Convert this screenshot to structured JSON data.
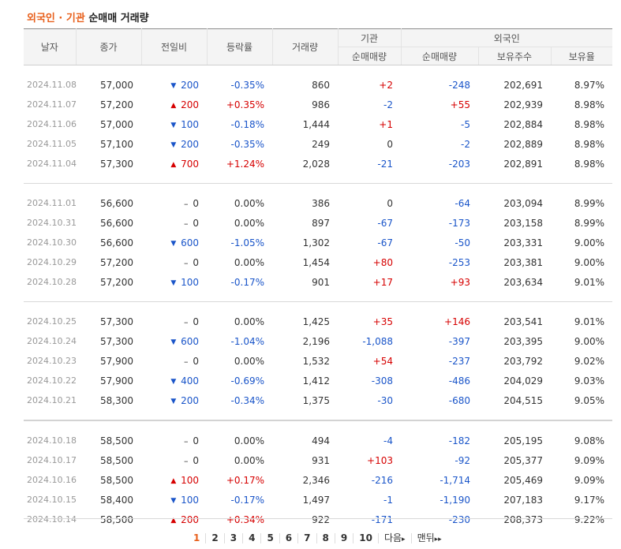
{
  "title": {
    "part1": "외국인 · 기관",
    "part2": "순매매 거래량"
  },
  "headers": {
    "date": "날자",
    "close": "종가",
    "change": "전일비",
    "rate": "등락률",
    "volume": "거래량",
    "inst": "기관",
    "foreign": "외국인",
    "inst_net": "순매매량",
    "foreign_net": "순매매량",
    "foreign_hold": "보유주수",
    "foreign_ratio": "보유율"
  },
  "groups": [
    {
      "rows": [
        {
          "date": "2024.11.08",
          "close": "57,000",
          "dir": "down",
          "change": "200",
          "rate": "-0.35%",
          "rate_dir": "down",
          "volume": "860",
          "inst": "+2",
          "inst_dir": "up",
          "foreign": "-248",
          "foreign_dir": "down",
          "hold": "202,691",
          "ratio": "8.97%"
        },
        {
          "date": "2024.11.07",
          "close": "57,200",
          "dir": "up",
          "change": "200",
          "rate": "+0.35%",
          "rate_dir": "up",
          "volume": "986",
          "inst": "-2",
          "inst_dir": "down",
          "foreign": "+55",
          "foreign_dir": "up",
          "hold": "202,939",
          "ratio": "8.98%"
        },
        {
          "date": "2024.11.06",
          "close": "57,000",
          "dir": "down",
          "change": "100",
          "rate": "-0.18%",
          "rate_dir": "down",
          "volume": "1,444",
          "inst": "+1",
          "inst_dir": "up",
          "foreign": "-5",
          "foreign_dir": "down",
          "hold": "202,884",
          "ratio": "8.98%"
        },
        {
          "date": "2024.11.05",
          "close": "57,100",
          "dir": "down",
          "change": "200",
          "rate": "-0.35%",
          "rate_dir": "down",
          "volume": "249",
          "inst": "0",
          "inst_dir": "flat",
          "foreign": "-2",
          "foreign_dir": "down",
          "hold": "202,889",
          "ratio": "8.98%"
        },
        {
          "date": "2024.11.04",
          "close": "57,300",
          "dir": "up",
          "change": "700",
          "rate": "+1.24%",
          "rate_dir": "up",
          "volume": "2,028",
          "inst": "-21",
          "inst_dir": "down",
          "foreign": "-203",
          "foreign_dir": "down",
          "hold": "202,891",
          "ratio": "8.98%"
        }
      ]
    },
    {
      "rows": [
        {
          "date": "2024.11.01",
          "close": "56,600",
          "dir": "flat",
          "change": "0",
          "rate": "0.00%",
          "rate_dir": "flat",
          "volume": "386",
          "inst": "0",
          "inst_dir": "flat",
          "foreign": "-64",
          "foreign_dir": "down",
          "hold": "203,094",
          "ratio": "8.99%"
        },
        {
          "date": "2024.10.31",
          "close": "56,600",
          "dir": "flat",
          "change": "0",
          "rate": "0.00%",
          "rate_dir": "flat",
          "volume": "897",
          "inst": "-67",
          "inst_dir": "down",
          "foreign": "-173",
          "foreign_dir": "down",
          "hold": "203,158",
          "ratio": "8.99%"
        },
        {
          "date": "2024.10.30",
          "close": "56,600",
          "dir": "down",
          "change": "600",
          "rate": "-1.05%",
          "rate_dir": "down",
          "volume": "1,302",
          "inst": "-67",
          "inst_dir": "down",
          "foreign": "-50",
          "foreign_dir": "down",
          "hold": "203,331",
          "ratio": "9.00%"
        },
        {
          "date": "2024.10.29",
          "close": "57,200",
          "dir": "flat",
          "change": "0",
          "rate": "0.00%",
          "rate_dir": "flat",
          "volume": "1,454",
          "inst": "+80",
          "inst_dir": "up",
          "foreign": "-253",
          "foreign_dir": "down",
          "hold": "203,381",
          "ratio": "9.00%"
        },
        {
          "date": "2024.10.28",
          "close": "57,200",
          "dir": "down",
          "change": "100",
          "rate": "-0.17%",
          "rate_dir": "down",
          "volume": "901",
          "inst": "+17",
          "inst_dir": "up",
          "foreign": "+93",
          "foreign_dir": "up",
          "hold": "203,634",
          "ratio": "9.01%"
        }
      ]
    },
    {
      "rows": [
        {
          "date": "2024.10.25",
          "close": "57,300",
          "dir": "flat",
          "change": "0",
          "rate": "0.00%",
          "rate_dir": "flat",
          "volume": "1,425",
          "inst": "+35",
          "inst_dir": "up",
          "foreign": "+146",
          "foreign_dir": "up",
          "hold": "203,541",
          "ratio": "9.01%"
        },
        {
          "date": "2024.10.24",
          "close": "57,300",
          "dir": "down",
          "change": "600",
          "rate": "-1.04%",
          "rate_dir": "down",
          "volume": "2,196",
          "inst": "-1,088",
          "inst_dir": "down",
          "foreign": "-397",
          "foreign_dir": "down",
          "hold": "203,395",
          "ratio": "9.00%"
        },
        {
          "date": "2024.10.23",
          "close": "57,900",
          "dir": "flat",
          "change": "0",
          "rate": "0.00%",
          "rate_dir": "flat",
          "volume": "1,532",
          "inst": "+54",
          "inst_dir": "up",
          "foreign": "-237",
          "foreign_dir": "down",
          "hold": "203,792",
          "ratio": "9.02%"
        },
        {
          "date": "2024.10.22",
          "close": "57,900",
          "dir": "down",
          "change": "400",
          "rate": "-0.69%",
          "rate_dir": "down",
          "volume": "1,412",
          "inst": "-308",
          "inst_dir": "down",
          "foreign": "-486",
          "foreign_dir": "down",
          "hold": "204,029",
          "ratio": "9.03%"
        },
        {
          "date": "2024.10.21",
          "close": "58,300",
          "dir": "down",
          "change": "200",
          "rate": "-0.34%",
          "rate_dir": "down",
          "volume": "1,375",
          "inst": "-30",
          "inst_dir": "down",
          "foreign": "-680",
          "foreign_dir": "down",
          "hold": "204,515",
          "ratio": "9.05%"
        }
      ]
    },
    {
      "rows": [
        {
          "date": "2024.10.18",
          "close": "58,500",
          "dir": "flat",
          "change": "0",
          "rate": "0.00%",
          "rate_dir": "flat",
          "volume": "494",
          "inst": "-4",
          "inst_dir": "down",
          "foreign": "-182",
          "foreign_dir": "down",
          "hold": "205,195",
          "ratio": "9.08%"
        },
        {
          "date": "2024.10.17",
          "close": "58,500",
          "dir": "flat",
          "change": "0",
          "rate": "0.00%",
          "rate_dir": "flat",
          "volume": "931",
          "inst": "+103",
          "inst_dir": "up",
          "foreign": "-92",
          "foreign_dir": "down",
          "hold": "205,377",
          "ratio": "9.09%"
        },
        {
          "date": "2024.10.16",
          "close": "58,500",
          "dir": "up",
          "change": "100",
          "rate": "+0.17%",
          "rate_dir": "up",
          "volume": "2,346",
          "inst": "-216",
          "inst_dir": "down",
          "foreign": "-1,714",
          "foreign_dir": "down",
          "hold": "205,469",
          "ratio": "9.09%"
        },
        {
          "date": "2024.10.15",
          "close": "58,400",
          "dir": "down",
          "change": "100",
          "rate": "-0.17%",
          "rate_dir": "down",
          "volume": "1,497",
          "inst": "-1",
          "inst_dir": "down",
          "foreign": "-1,190",
          "foreign_dir": "down",
          "hold": "207,183",
          "ratio": "9.17%"
        },
        {
          "date": "2024.10.14",
          "close": "58,500",
          "dir": "up",
          "change": "200",
          "rate": "+0.34%",
          "rate_dir": "up",
          "volume": "922",
          "inst": "-171",
          "inst_dir": "down",
          "foreign": "-230",
          "foreign_dir": "down",
          "hold": "208,373",
          "ratio": "9.22%"
        }
      ]
    }
  ],
  "colors": {
    "up": "#d60000",
    "down": "#1a55c9",
    "accent": "#e8601c"
  },
  "arrows": {
    "up": "▲",
    "down": "▼",
    "flat": "–"
  },
  "pager": {
    "pages": [
      "1",
      "2",
      "3",
      "4",
      "5",
      "6",
      "7",
      "8",
      "9",
      "10"
    ],
    "current": "1",
    "next": "다음",
    "last": "맨뒤"
  }
}
